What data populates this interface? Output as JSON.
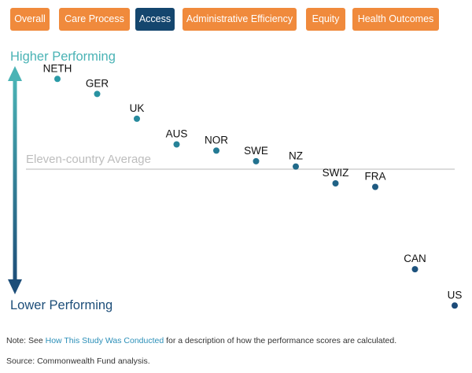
{
  "tabs": [
    {
      "label": "Overall",
      "active": false
    },
    {
      "label": "Care Process",
      "active": false
    },
    {
      "label": "Access",
      "active": true
    },
    {
      "label": "Administrative Efficiency",
      "active": false
    },
    {
      "label": "Equity",
      "active": false
    },
    {
      "label": "Health Outcomes",
      "active": false
    }
  ],
  "axis": {
    "top_label": "Higher Performing",
    "bottom_label": "Lower Performing"
  },
  "note": {
    "prefix": "Note: See ",
    "link": "How This Study Was Conducted",
    "suffix": " for a description of how the performance scores are calculated."
  },
  "source": "Source: Commonwealth Fund analysis.",
  "colors": {
    "tab": "#f08a3c",
    "tab_active": "#14466e",
    "arrow_top": "#4ab3b5",
    "arrow_bottom": "#1d4e79",
    "average_line": "#c8c8c8",
    "average_label": "#bdbdbd"
  },
  "chart_data": {
    "type": "scatter",
    "reference_line": {
      "label": "Eleven-country Average",
      "value": 0
    },
    "points": [
      {
        "label": "NETH",
        "value": 1.02
      },
      {
        "label": "GER",
        "value": 0.85
      },
      {
        "label": "UK",
        "value": 0.57
      },
      {
        "label": "AUS",
        "value": 0.28
      },
      {
        "label": "NOR",
        "value": 0.21
      },
      {
        "label": "SWE",
        "value": 0.09
      },
      {
        "label": "NZ",
        "value": 0.03
      },
      {
        "label": "SWIZ",
        "value": -0.16
      },
      {
        "label": "FRA",
        "value": -0.2
      },
      {
        "label": "CAN",
        "value": -1.13
      },
      {
        "label": "US",
        "value": -1.54
      }
    ],
    "ylim": [
      -1.6,
      1.2
    ],
    "grid": false,
    "legend": "none"
  }
}
